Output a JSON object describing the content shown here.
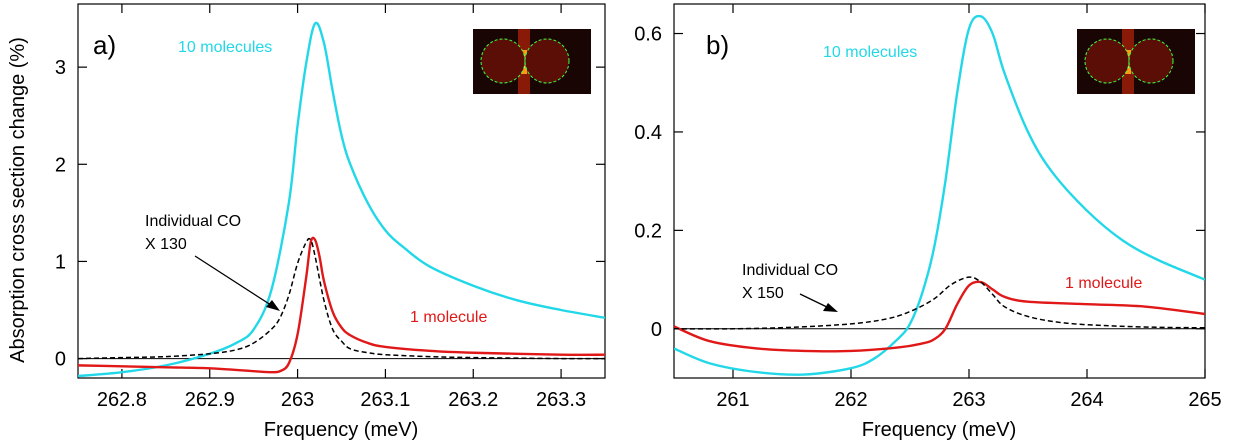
{
  "figure": {
    "ylabel": "Absorption cross section change   (%)",
    "xlabel": "Frequency (meV)"
  },
  "chart_data": [
    {
      "type": "line",
      "panel_label": "a)",
      "xlabel": "Frequency (meV)",
      "ylabel": "Absorption cross section change   (%)",
      "xlim": [
        262.75,
        263.35
      ],
      "ylim": [
        -0.2,
        3.65
      ],
      "xticks": [
        262.8,
        262.9,
        263,
        263.1,
        263.2,
        263.3
      ],
      "xtick_labels": [
        "262.8",
        "262.9",
        "263",
        "263.1",
        "263.2",
        "263.3"
      ],
      "yticks": [
        0,
        1,
        2,
        3
      ],
      "ytick_labels": [
        "0",
        "1",
        "2",
        "3"
      ],
      "zero_line": true,
      "annotations": {
        "ten": "10 molecules",
        "one": "1 molecule",
        "co_line1": "Individual CO",
        "co_line2": "X 130"
      },
      "colors": {
        "ten": "#22d8e8",
        "one": "#e01818",
        "co": "#000000"
      },
      "series": [
        {
          "name": "10 molecules",
          "style": "solid",
          "x": [
            262.75,
            262.8,
            262.85,
            262.9,
            262.93,
            262.95,
            262.97,
            262.99,
            263.0,
            263.01,
            263.02,
            263.03,
            263.04,
            263.05,
            263.06,
            263.08,
            263.1,
            263.12,
            263.15,
            263.2,
            263.25,
            263.3,
            263.35
          ],
          "values": [
            -0.18,
            -0.14,
            -0.07,
            0.05,
            0.16,
            0.3,
            0.7,
            1.6,
            2.4,
            3.05,
            3.45,
            3.25,
            2.75,
            2.3,
            2.0,
            1.6,
            1.32,
            1.15,
            0.95,
            0.75,
            0.6,
            0.5,
            0.42
          ]
        },
        {
          "name": "1 molecule",
          "style": "solid",
          "x": [
            262.75,
            262.8,
            262.85,
            262.9,
            262.95,
            262.97,
            262.98,
            262.99,
            263.0,
            263.01,
            263.015,
            263.02,
            263.025,
            263.03,
            263.04,
            263.05,
            263.06,
            263.08,
            263.1,
            263.15,
            263.2,
            263.3,
            263.35
          ],
          "values": [
            -0.07,
            -0.08,
            -0.09,
            -0.1,
            -0.13,
            -0.14,
            -0.13,
            -0.05,
            0.25,
            0.85,
            1.2,
            1.22,
            1.05,
            0.8,
            0.48,
            0.32,
            0.24,
            0.16,
            0.12,
            0.08,
            0.06,
            0.04,
            0.04
          ]
        },
        {
          "name": "Individual CO X 130",
          "style": "dashed",
          "x": [
            262.75,
            262.8,
            262.85,
            262.9,
            262.93,
            262.95,
            262.97,
            262.98,
            262.99,
            263.0,
            263.01,
            263.015,
            263.02,
            263.03,
            263.04,
            263.05,
            263.06,
            263.08,
            263.1,
            263.15,
            263.2,
            263.3,
            263.35
          ],
          "values": [
            0.0,
            0.01,
            0.02,
            0.05,
            0.09,
            0.16,
            0.3,
            0.42,
            0.65,
            0.98,
            1.2,
            1.22,
            1.05,
            0.6,
            0.3,
            0.18,
            0.1,
            0.06,
            0.04,
            0.02,
            0.01,
            0.0,
            0.0
          ]
        }
      ]
    },
    {
      "type": "line",
      "panel_label": "b)",
      "xlabel": "Frequency (meV)",
      "xlim": [
        260.5,
        265.0
      ],
      "ylim": [
        -0.1,
        0.66
      ],
      "xticks": [
        261,
        262,
        263,
        264,
        265
      ],
      "xtick_labels": [
        "261",
        "262",
        "263",
        "264",
        "265"
      ],
      "yticks": [
        0,
        0.2,
        0.4,
        0.6
      ],
      "ytick_labels": [
        "0",
        "0.2",
        "0.4",
        "0.6"
      ],
      "zero_line": true,
      "annotations": {
        "ten": "10 molecules",
        "one": "1 molecule",
        "co_line1": "Individual CO",
        "co_line2": "X 150"
      },
      "colors": {
        "ten": "#22d8e8",
        "one": "#e01818",
        "co": "#000000"
      },
      "series": [
        {
          "name": "10 molecules",
          "style": "solid",
          "x": [
            260.5,
            260.8,
            261.2,
            261.6,
            262.0,
            262.2,
            262.4,
            262.5,
            262.6,
            262.7,
            262.8,
            262.9,
            263.0,
            263.1,
            263.2,
            263.3,
            263.5,
            263.7,
            264.0,
            264.3,
            264.6,
            265.0
          ],
          "values": [
            -0.04,
            -0.07,
            -0.088,
            -0.093,
            -0.08,
            -0.06,
            -0.02,
            0.01,
            0.07,
            0.16,
            0.3,
            0.48,
            0.61,
            0.635,
            0.6,
            0.52,
            0.4,
            0.32,
            0.24,
            0.18,
            0.14,
            0.1
          ]
        },
        {
          "name": "1 molecule",
          "style": "solid",
          "x": [
            260.5,
            260.8,
            261.2,
            261.6,
            262.0,
            262.4,
            262.6,
            262.7,
            262.8,
            262.9,
            263.0,
            263.1,
            263.2,
            263.3,
            263.5,
            264.0,
            264.5,
            265.0
          ],
          "values": [
            0.005,
            -0.025,
            -0.04,
            -0.045,
            -0.045,
            -0.038,
            -0.03,
            -0.022,
            0.0,
            0.05,
            0.088,
            0.095,
            0.08,
            0.065,
            0.055,
            0.05,
            0.045,
            0.03
          ]
        },
        {
          "name": "Individual CO X 150",
          "style": "dashed",
          "x": [
            260.5,
            261.0,
            261.5,
            262.0,
            262.3,
            262.5,
            262.7,
            262.85,
            263.0,
            263.1,
            263.2,
            263.3,
            263.5,
            263.8,
            264.2,
            264.6,
            265.0
          ],
          "values": [
            0.0,
            0.0,
            0.003,
            0.01,
            0.02,
            0.035,
            0.06,
            0.09,
            0.105,
            0.095,
            0.07,
            0.045,
            0.025,
            0.012,
            0.006,
            0.003,
            0.002
          ]
        }
      ]
    }
  ]
}
